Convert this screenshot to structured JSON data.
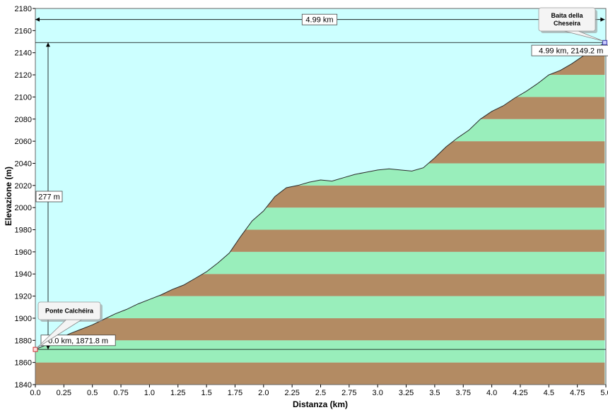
{
  "chart_data": {
    "type": "area",
    "xlabel": "Distanza  (km)",
    "ylabel": "Elevazione (m)",
    "xlim": [
      0,
      5
    ],
    "ylim": [
      1840,
      2180
    ],
    "x_ticks": [
      "0.0",
      "0.25",
      "0.5",
      "0.75",
      "1.0",
      "1.25",
      "1.5",
      "1.75",
      "2.0",
      "2.25",
      "2.5",
      "2.75",
      "3.0",
      "3.25",
      "3.5",
      "3.75",
      "4.0",
      "4.25",
      "4.5",
      "4.75",
      "5.0"
    ],
    "y_ticks": [
      "1840",
      "1860",
      "1880",
      "1900",
      "1920",
      "1940",
      "1960",
      "1980",
      "2000",
      "2020",
      "2040",
      "2060",
      "2080",
      "2100",
      "2120",
      "2140",
      "2160",
      "2180"
    ],
    "colors": {
      "background": "#ccffff",
      "band_brown": "#b38b63",
      "band_green": "#99eebb",
      "line": "#2a2a2a"
    },
    "profile": {
      "x": [
        0,
        0.1,
        0.2,
        0.3,
        0.4,
        0.5,
        0.6,
        0.7,
        0.8,
        0.9,
        1.0,
        1.1,
        1.2,
        1.3,
        1.4,
        1.5,
        1.6,
        1.7,
        1.8,
        1.9,
        2.0,
        2.1,
        2.2,
        2.3,
        2.4,
        2.5,
        2.6,
        2.7,
        2.8,
        2.9,
        3.0,
        3.1,
        3.2,
        3.3,
        3.4,
        3.5,
        3.6,
        3.7,
        3.8,
        3.9,
        4.0,
        4.1,
        4.2,
        4.3,
        4.4,
        4.5,
        4.6,
        4.7,
        4.8,
        4.9,
        4.99
      ],
      "y": [
        1871.8,
        1876,
        1881,
        1886,
        1890,
        1894,
        1899,
        1904,
        1908,
        1913,
        1917,
        1921,
        1926,
        1930,
        1936,
        1942,
        1950,
        1959,
        1974,
        1988,
        1997,
        2010,
        2018,
        2020,
        2023,
        2025,
        2024,
        2027,
        2030,
        2032,
        2034,
        2035,
        2034,
        2033,
        2036,
        2045,
        2055,
        2063,
        2070,
        2080,
        2087,
        2092,
        2099,
        2105,
        2112,
        2120,
        2124,
        2130,
        2137,
        2143,
        2149.2
      ]
    },
    "annotations": {
      "distance": "4.99 km",
      "gain": "277 m",
      "start_label": "0.0 km, 1871.8 m",
      "end_label": "4.99 km, 2149.2 m",
      "start_point": {
        "x": 0,
        "y": 1871.8,
        "name": "Ponte Calchéira"
      },
      "end_point": {
        "x": 4.99,
        "y": 2149.2,
        "name_lines": [
          "Baita della",
          "Cheseira"
        ]
      }
    }
  }
}
